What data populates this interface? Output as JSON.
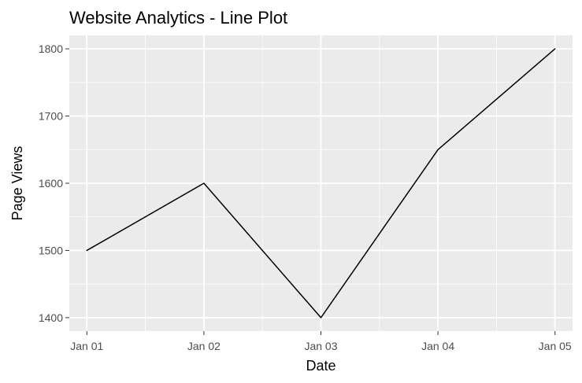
{
  "chart_data": {
    "type": "line",
    "title": "Website Analytics - Line Plot",
    "xlabel": "Date",
    "ylabel": "Page Views",
    "x": [
      "Jan 01",
      "Jan 02",
      "Jan 03",
      "Jan 04",
      "Jan 05"
    ],
    "series": [
      {
        "values": [
          1500,
          1600,
          1400,
          1650,
          1800
        ]
      }
    ],
    "xlim": [
      "Dec 31.85",
      "Jan 05.15"
    ],
    "ylim": [
      1380,
      1820
    ],
    "y_ticks": [
      1400,
      1500,
      1600,
      1700,
      1800
    ],
    "y_tick_labels": [
      "1400",
      "1500",
      "1600",
      "1700",
      "1800"
    ],
    "grid": true,
    "legend": "none",
    "colors": {
      "panel_background": "#ebebeb",
      "grid": "#ffffff",
      "line": "#000000",
      "tick_text": "#4d4d4d",
      "axis_text": "#000000"
    }
  }
}
